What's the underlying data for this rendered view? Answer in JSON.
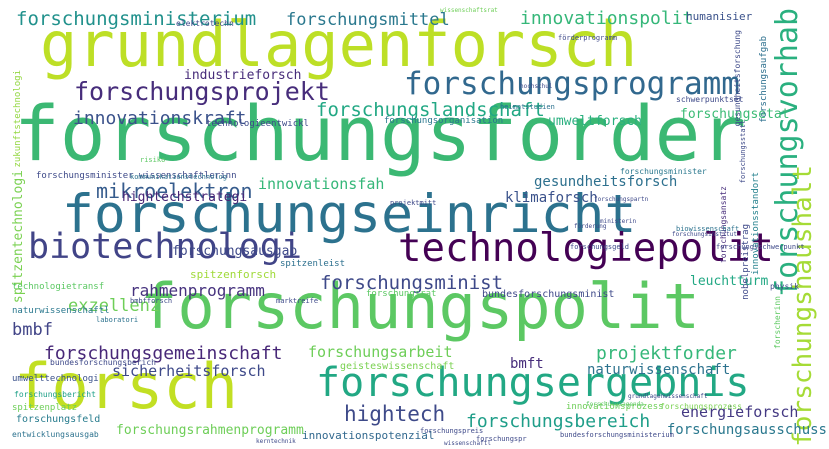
{
  "word_cloud": {
    "words": [
      {
        "text": "forschungsforder",
        "color": "#3bb873"
      },
      {
        "text": "grundlagenforsch",
        "color": "#bddf26"
      },
      {
        "text": "forschungspolit",
        "color": "#5cc863"
      },
      {
        "text": "forschungseinricht",
        "color": "#2c728e"
      },
      {
        "text": "forsch",
        "color": "#c2df23"
      },
      {
        "text": "forschungsergebnis",
        "color": "#22a884"
      },
      {
        "text": "technologiepolit",
        "color": "#440154"
      },
      {
        "text": "biotechnologi",
        "color": "#414487"
      },
      {
        "text": "forschungsprogramm",
        "color": "#31688e"
      },
      {
        "text": "forschungsprojekt",
        "color": "#472d7b"
      },
      {
        "text": "forschungsvorhab",
        "color": "#2ab07f"
      },
      {
        "text": "forschungshaushalt",
        "color": "#a5db36"
      },
      {
        "text": "forschungsministerium",
        "color": "#21918c"
      },
      {
        "text": "forschungslandschaft",
        "color": "#22a884"
      },
      {
        "text": "forschungsminist",
        "color": "#3e4989"
      },
      {
        "text": "forschungsgemeinschaft",
        "color": "#482878"
      },
      {
        "text": "hightech",
        "color": "#3e4a89"
      },
      {
        "text": "forschungsbereich",
        "color": "#1f9e89"
      },
      {
        "text": "mikroelektron",
        "color": "#365c8d"
      },
      {
        "text": "innovationskraft",
        "color": "#3b528b"
      },
      {
        "text": "forschungsmittel",
        "color": "#2a788e"
      },
      {
        "text": "innovationspolit",
        "color": "#35b779"
      },
      {
        "text": "exzellenz",
        "color": "#6ece58"
      },
      {
        "text": "bmbf",
        "color": "#414487"
      },
      {
        "text": "rahmenprogramm",
        "color": "#46327e"
      },
      {
        "text": "projektforder",
        "color": "#35b779"
      },
      {
        "text": "forschungsausschuss",
        "color": "#2a788e"
      },
      {
        "text": "energieforsch",
        "color": "#443983"
      },
      {
        "text": "naturwissenschaft",
        "color": "#2c728e"
      },
      {
        "text": "sicherheitsforsch",
        "color": "#3e4989"
      },
      {
        "text": "forschungsarbeit",
        "color": "#6ece58"
      },
      {
        "text": "innovationsfah",
        "color": "#35b779"
      },
      {
        "text": "gesundheitsforsch",
        "color": "#2d708e"
      },
      {
        "text": "hightechstrategi",
        "color": "#482475"
      },
      {
        "text": "klimaforsch",
        "color": "#3b528b"
      },
      {
        "text": "forschungsausgab",
        "color": "#3e4989"
      },
      {
        "text": "industrieforsch",
        "color": "#472c7a"
      },
      {
        "text": "umweltforsch",
        "color": "#2ab07f"
      },
      {
        "text": "forschungsetat",
        "color": "#3bbb75"
      },
      {
        "text": "spitzentechnologi",
        "color": "#7ad151"
      },
      {
        "text": "forschungsrahmenprogramm",
        "color": "#6ece58"
      },
      {
        "text": "spitzenforsch",
        "color": "#a0da39"
      },
      {
        "text": "leuchtturm",
        "color": "#22a884"
      },
      {
        "text": "bmft",
        "color": "#472d7b"
      },
      {
        "text": "innovationspotenzial",
        "color": "#31688e"
      },
      {
        "text": "humanisier",
        "color": "#3b528b"
      },
      {
        "text": "forschungsfeld",
        "color": "#287c8e"
      },
      {
        "text": "forschungsorganisation",
        "color": "#2a788e"
      },
      {
        "text": "technologieentwickl",
        "color": "#3e4a89"
      },
      {
        "text": "zukunftstechnologi",
        "color": "#93d741"
      },
      {
        "text": "forschungsaufgab",
        "color": "#2d708e"
      },
      {
        "text": "spitzenleist",
        "color": "#2d708e"
      },
      {
        "text": "geisteswissenschaft",
        "color": "#7ad151"
      },
      {
        "text": "bundesforschungsminist",
        "color": "#3e4989"
      },
      {
        "text": "forschungsminister wissenschaftlerinn",
        "color": "#3e4a89"
      },
      {
        "text": "technologietransf",
        "color": "#5cc863"
      },
      {
        "text": "forschungsrat",
        "color": "#5cc863"
      },
      {
        "text": "naturwissenschaftl",
        "color": "#2a788e"
      },
      {
        "text": "umwelttechnologi",
        "color": "#3b528b"
      },
      {
        "text": "spitzenplatz",
        "color": "#6ece58"
      },
      {
        "text": "entwicklungsausgab",
        "color": "#2c728e"
      },
      {
        "text": "forschungsbericht",
        "color": "#1fa088"
      },
      {
        "text": "nobelpreistrag",
        "color": "#3e4989"
      },
      {
        "text": "innovationsstandort",
        "color": "#26828e"
      },
      {
        "text": "forschungsansatz",
        "color": "#472d7b"
      },
      {
        "text": "forschungsprozess",
        "color": "#7ad151"
      },
      {
        "text": "innovationsprozess",
        "color": "#6ece58"
      },
      {
        "text": "forscherinn",
        "color": "#5ec962"
      },
      {
        "text": "schwerpunktset",
        "color": "#3e4a89"
      },
      {
        "text": "elektrotechn",
        "color": "#3e4989"
      },
      {
        "text": "gesundheitsforschung",
        "color": "#3e4a89"
      },
      {
        "text": "forschungsminister",
        "color": "#2a788e"
      },
      {
        "text": "physik",
        "color": "#3e4989"
      },
      {
        "text": "bundesforschungsberich",
        "color": "#3e4989"
      },
      {
        "text": "heimatstudien",
        "color": "#2c728e"
      },
      {
        "text": "kommunikationstechnolog",
        "color": "#2c728e"
      },
      {
        "text": "laboratori",
        "color": "#2c728e"
      },
      {
        "text": "bundesforschungsministerium",
        "color": "#3e4989"
      },
      {
        "text": "forschungsstatt",
        "color": "#3e4a89"
      },
      {
        "text": "wissenschaftsrat",
        "color": "#6ece58"
      },
      {
        "text": "bmbfforsch",
        "color": "#3e4989"
      },
      {
        "text": "marktreife",
        "color": "#3e4989"
      },
      {
        "text": "biowissenschaft",
        "color": "#2c728e"
      },
      {
        "text": "projektmitt",
        "color": "#3e4989"
      },
      {
        "text": "forschungspreis",
        "color": "#3e4989"
      },
      {
        "text": "förderprogramm",
        "color": "#3e4989"
      },
      {
        "text": "forschungspr",
        "color": "#3e4989"
      },
      {
        "text": "forschungsschwerpunkt",
        "color": "#3e4989"
      },
      {
        "text": "forschungsgeld",
        "color": "#3e4989"
      },
      {
        "text": "forschungsagenda",
        "color": "#5cc863"
      },
      {
        "text": "grundlagenwissenschaft",
        "color": "#3e4989"
      },
      {
        "text": "wissenschaftl",
        "color": "#3e4989"
      },
      {
        "text": "risiko",
        "color": "#5cc863"
      },
      {
        "text": "kerntechnik",
        "color": "#3e4a89"
      },
      {
        "text": "ministerin",
        "color": "#3e4989"
      },
      {
        "text": "forschungsinstitut",
        "color": "#3e4a89"
      },
      {
        "text": "hochschul",
        "color": "#3e4989"
      },
      {
        "text": "forschungspartn",
        "color": "#3e4989"
      },
      {
        "text": "förderung",
        "color": "#3e4989"
      }
    ]
  }
}
